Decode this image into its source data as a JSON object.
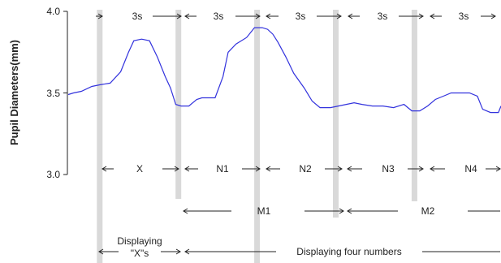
{
  "chart_data": {
    "type": "line",
    "title": "",
    "xlabel": "",
    "ylabel": "Pupil Diameters(mm)",
    "ylim": [
      3.0,
      4.0
    ],
    "yticks": [
      "3.0",
      "3.5",
      "4.0"
    ],
    "grid": false,
    "x_unit": "s",
    "xlim": [
      0,
      16.5
    ],
    "series": [
      {
        "color": "#3333dd",
        "x": [
          0.0,
          0.2,
          0.5,
          0.9,
          1.2,
          1.6,
          2.0,
          2.3,
          2.5,
          2.8,
          3.1,
          3.4,
          3.7,
          3.9,
          4.1,
          4.3,
          4.6,
          4.9,
          5.1,
          5.3,
          5.6,
          5.9,
          6.1,
          6.4,
          6.8,
          7.1,
          7.4,
          7.6,
          7.8,
          8.0,
          8.3,
          8.6,
          9.0,
          9.3,
          9.6,
          10.0,
          10.3,
          10.6,
          10.9,
          11.2,
          11.6,
          12.0,
          12.4,
          12.8,
          13.1,
          13.4,
          13.7,
          14.0,
          14.3,
          14.6,
          15.0,
          15.3,
          15.6,
          15.8,
          16.1,
          16.4,
          16.5
        ],
        "y": [
          3.49,
          3.5,
          3.51,
          3.54,
          3.55,
          3.56,
          3.63,
          3.75,
          3.82,
          3.83,
          3.82,
          3.72,
          3.6,
          3.53,
          3.43,
          3.42,
          3.42,
          3.46,
          3.47,
          3.47,
          3.47,
          3.6,
          3.75,
          3.8,
          3.84,
          3.9,
          3.9,
          3.89,
          3.86,
          3.81,
          3.72,
          3.62,
          3.53,
          3.45,
          3.41,
          3.41,
          3.42,
          3.43,
          3.44,
          3.43,
          3.42,
          3.42,
          3.41,
          3.43,
          3.39,
          3.39,
          3.42,
          3.46,
          3.48,
          3.5,
          3.5,
          3.5,
          3.48,
          3.4,
          3.38,
          3.38,
          3.42
        ]
      }
    ],
    "markers_x": [
      1.2,
      4.2,
      7.2,
      10.2,
      13.2
    ],
    "annotations": {
      "top": [
        "3s",
        "3s",
        "3s",
        "3s",
        "3s"
      ],
      "row1": [
        "X",
        "N1",
        "N2",
        "N3",
        "N4"
      ],
      "row2": [
        "M1",
        "M2"
      ],
      "row3": [
        "Displaying",
        "\"X\"s",
        "Displaying four numbers"
      ]
    }
  }
}
